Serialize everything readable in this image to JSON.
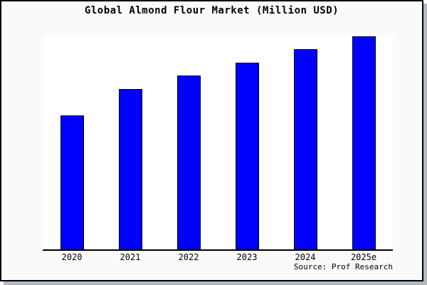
{
  "window": {
    "background_color": "#fafafa",
    "plot_background_color": "#ffffff",
    "border_color": "#000000",
    "shadow_color": "#b2b8be"
  },
  "chart": {
    "title": "Global Almond Flour Market (Million USD)",
    "source": "Source: Prof Research"
  },
  "chart_data": {
    "type": "bar",
    "title": "Global Almond Flour Market (Million USD)",
    "categories": [
      "2020",
      "2021",
      "2022",
      "2023",
      "2024",
      "2025e"
    ],
    "values": [
      62.9,
      75.3,
      81.6,
      87.6,
      94.0,
      100
    ],
    "units": "relative bar height; no y-axis ticks or value labels are shown, values normalized to 2025e = 100",
    "xlabel": "",
    "ylabel": "",
    "ylim": [
      0,
      100
    ],
    "grid": false,
    "legend": false,
    "bar_color": "#0000FF",
    "bar_border_color": "#000000",
    "axis_line": "bottom-only",
    "annotation": "Source: Prof Research"
  }
}
